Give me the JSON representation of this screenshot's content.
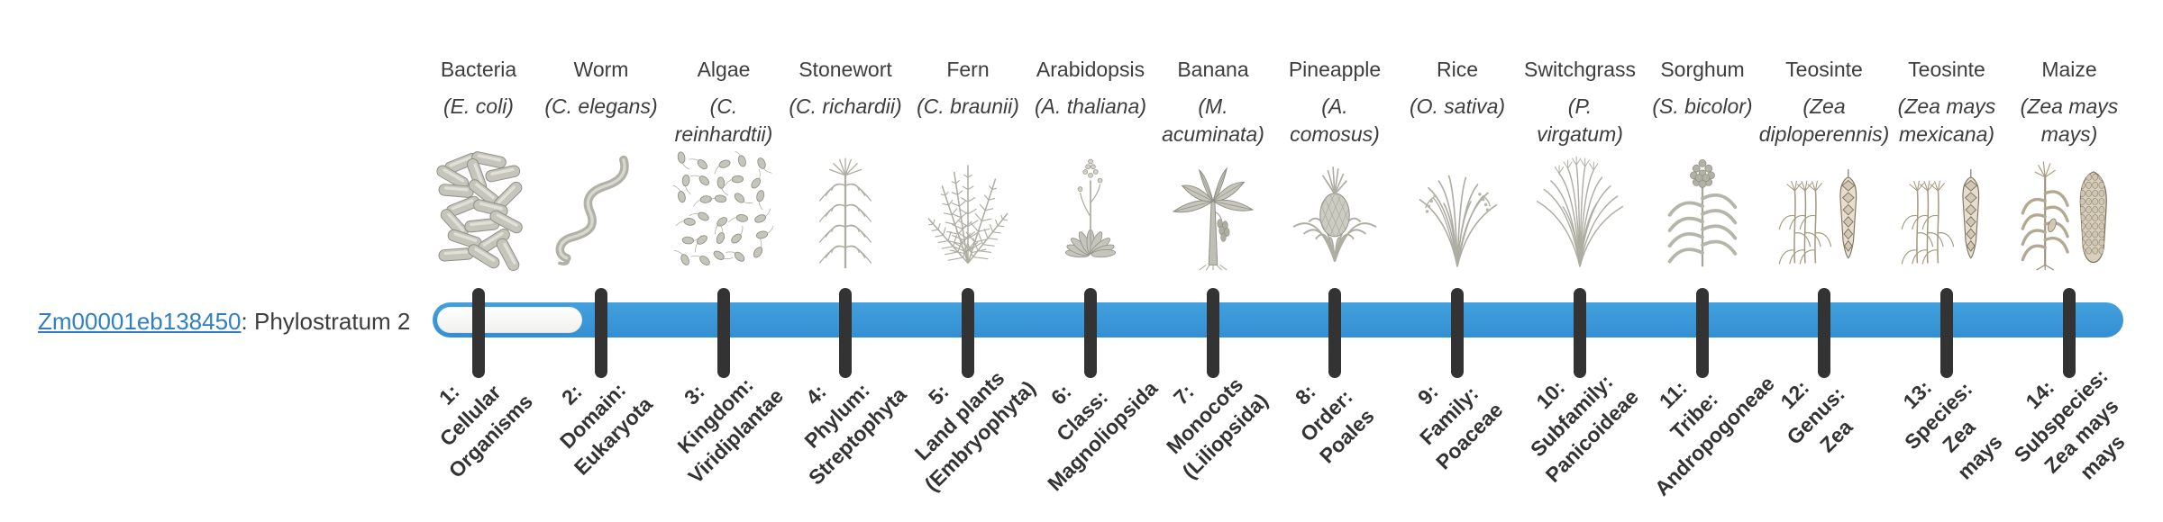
{
  "gene": {
    "id": "Zm00001eb138450",
    "label_suffix": ": Phylostratum 2",
    "phylostratum": 2
  },
  "timeline": {
    "bar_color": "#3898db",
    "track_color": "#ffffff",
    "tick_color": "#333333",
    "filled_from_stratum": 2,
    "total_strata": 14
  },
  "strata": [
    {
      "num": 1,
      "organism": "Bacteria",
      "species": "(E. coli)",
      "icon": "bacteria-icon",
      "clade": "1:\nCellular\nOrganisms"
    },
    {
      "num": 2,
      "organism": "Worm",
      "species": "(C. elegans)",
      "icon": "worm-icon",
      "clade": "2:\nDomain:\nEukaryota"
    },
    {
      "num": 3,
      "organism": "Algae",
      "species": "(C.\nreinhardtii)",
      "icon": "algae-icon",
      "clade": "3:\nKingdom:\nViridiplantae"
    },
    {
      "num": 4,
      "organism": "Stonewort",
      "species": "(C. richardii)",
      "icon": "stonewort-icon",
      "clade": "4:\nPhylum:\nStreptophyta"
    },
    {
      "num": 5,
      "organism": "Fern",
      "species": "(C. braunii)",
      "icon": "fern-icon",
      "clade": "5:\nLand plants\n(Embryophyta)"
    },
    {
      "num": 6,
      "organism": "Arabidopsis",
      "species": "(A. thaliana)",
      "icon": "arabidopsis-icon",
      "clade": "6:\nClass:\nMagnoliopsida"
    },
    {
      "num": 7,
      "organism": "Banana",
      "species": "(M.\nacuminata)",
      "icon": "banana-icon",
      "clade": "7:\nMonocots\n(Liliopsida)"
    },
    {
      "num": 8,
      "organism": "Pineapple",
      "species": "(A.\ncomosus)",
      "icon": "pineapple-icon",
      "clade": "8:\nOrder:\nPoales"
    },
    {
      "num": 9,
      "organism": "Rice",
      "species": "(O. sativa)",
      "icon": "rice-icon",
      "clade": "9:\nFamily:\nPoaceae"
    },
    {
      "num": 10,
      "organism": "Switchgrass",
      "species": "(P.\nvirgatum)",
      "icon": "switchgrass-icon",
      "clade": "10:\nSubfamily:\nPanicoideae"
    },
    {
      "num": 11,
      "organism": "Sorghum",
      "species": "(S. bicolor)",
      "icon": "sorghum-icon",
      "clade": "11:\nTribe:\nAndropogoneae"
    },
    {
      "num": 12,
      "organism": "Teosinte",
      "species": "(Zea\ndiploperennis)",
      "icon": "teosinte-icon",
      "clade": "12:\nGenus:\nZea"
    },
    {
      "num": 13,
      "organism": "Teosinte",
      "species": "(Zea mays\nmexicana)",
      "icon": "teosinte-icon",
      "clade": "13:\nSpecies:\nZea\nmays"
    },
    {
      "num": 14,
      "organism": "Maize",
      "species": "(Zea mays\nmays)",
      "icon": "maize-icon",
      "clade": "14:\nSubspecies:\nZea mays\nmays"
    }
  ]
}
